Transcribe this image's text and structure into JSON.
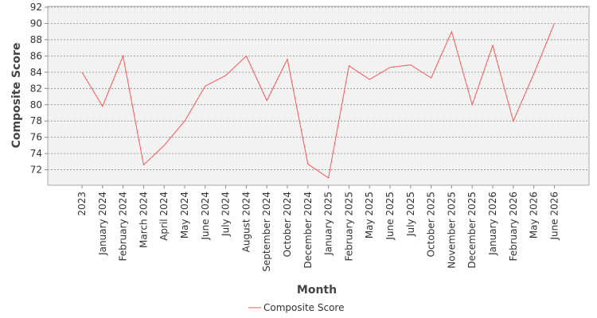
{
  "chart_data": {
    "type": "line",
    "title": "",
    "xlabel": "Month",
    "ylabel": "Composite Score",
    "categories": [
      "2023",
      "January 2024",
      "February 2024",
      "March 2024",
      "April 2024",
      "May 2024",
      "June 2024",
      "July 2024",
      "August 2024",
      "September 2024",
      "October 2024",
      "December 2024",
      "January 2025",
      "February 2025",
      "May 2025",
      "June 2025",
      "July 2025",
      "October 2025",
      "November 2025",
      "December 2025",
      "January 2026",
      "February 2026",
      "May 2026",
      "June 2026"
    ],
    "series": [
      {
        "name": "Composite Score",
        "color": "#ff5555",
        "values": [
          84.0,
          79.8,
          86.0,
          72.6,
          75.0,
          78.0,
          82.3,
          83.6,
          86.0,
          80.5,
          85.6,
          72.7,
          71.0,
          84.8,
          83.1,
          84.6,
          84.9,
          83.3,
          89.0,
          80.0,
          87.3,
          78.0,
          83.8,
          90.0
        ]
      }
    ],
    "yticks": [
      72,
      74,
      76,
      78,
      80,
      82,
      84,
      86,
      88,
      90,
      92
    ],
    "ylim": [
      70.1,
      92.1
    ],
    "grid": true,
    "legend_position": "bottom"
  }
}
